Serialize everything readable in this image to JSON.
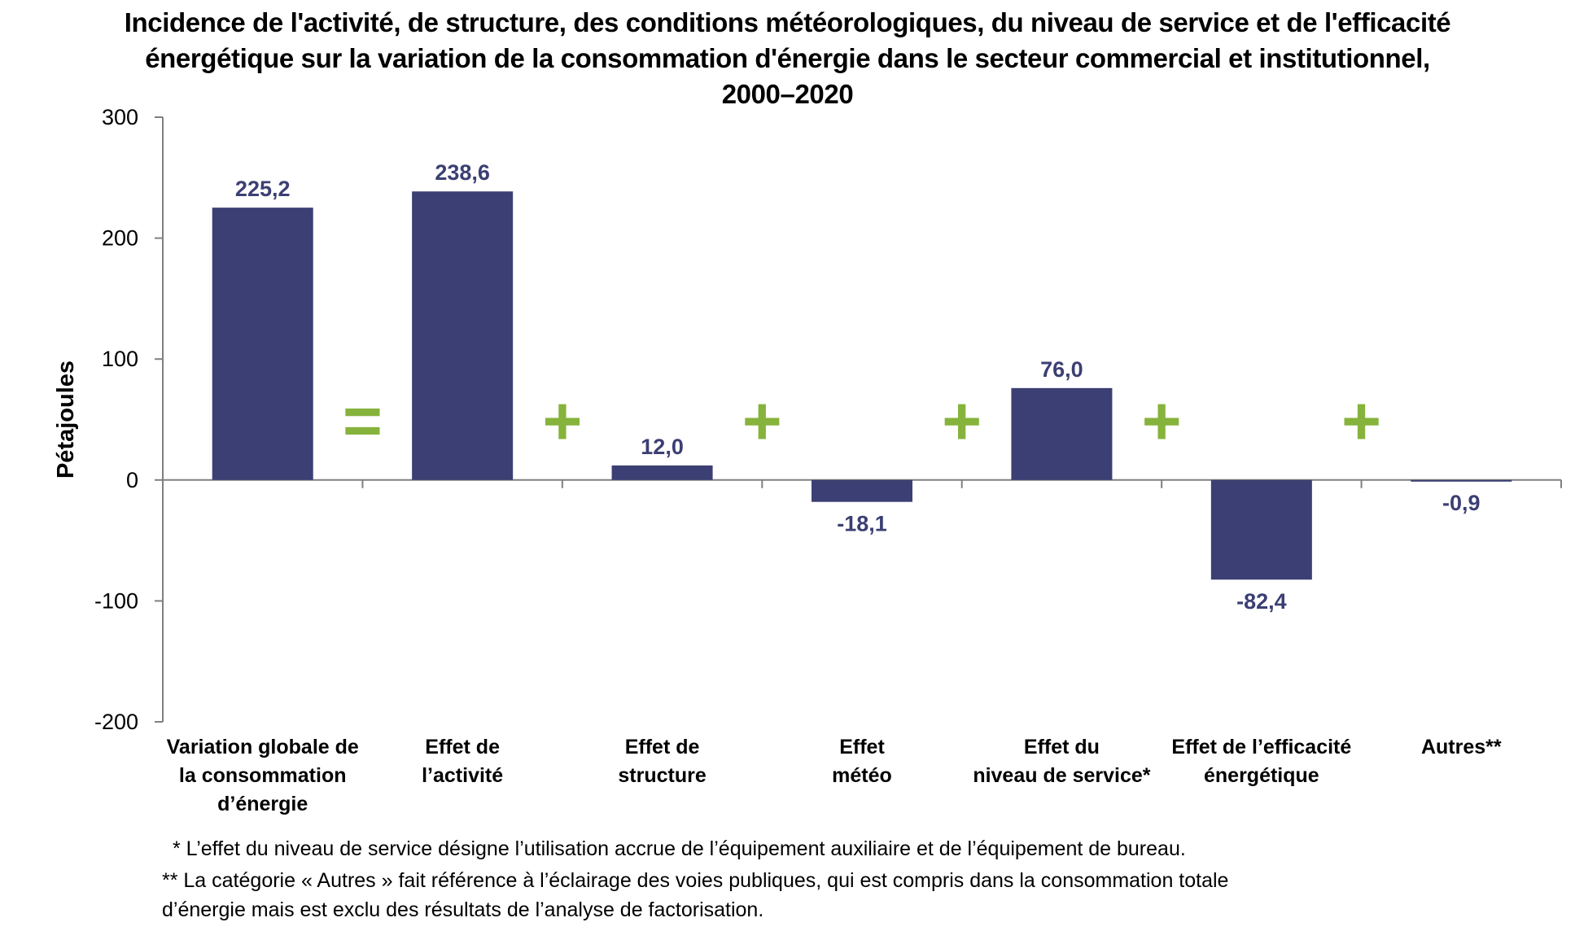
{
  "chart_data": {
    "type": "bar",
    "title": "Incidence de l'activité, de structure, des conditions météorologiques, du niveau de service et de l'efficacité\nénergétique sur la variation de la consommation d'énergie dans le secteur commercial et institutionnel,\n2000–2020",
    "ylabel": "Pétajoules",
    "xlabel": "",
    "ylim": [
      -200,
      300
    ],
    "yticks": [
      300,
      200,
      100,
      0,
      -100,
      -200
    ],
    "categories": [
      [
        "Variation globale de",
        "la consommation",
        "d’énergie"
      ],
      [
        "Effet de",
        "l’activité"
      ],
      [
        "Effet de",
        "structure"
      ],
      [
        "Effet",
        "météo"
      ],
      [
        "Effet du",
        "niveau de service*"
      ],
      [
        "Effet de l’efficacité",
        "énergétique"
      ],
      [
        "Autres**"
      ]
    ],
    "values": [
      225.2,
      238.6,
      12.0,
      -18.1,
      76.0,
      -82.4,
      -0.9
    ],
    "value_labels": [
      "225,2",
      "238,6",
      "12,0",
      "-18,1",
      "76,0",
      "-82,4",
      "-0,9"
    ],
    "operators": [
      "=",
      "+",
      "+",
      "+",
      "+",
      "+"
    ],
    "colors": {
      "bar": "#3b3f73",
      "operator": "#86b33c",
      "axis": "#808080"
    },
    "grid": false,
    "legend": "none"
  },
  "footnotes": [
    "* L’effet du niveau de service désigne l’utilisation accrue de l’équipement auxiliaire et de l’équipement de bureau.",
    "** La catégorie « Autres » fait référence à l’éclairage des voies publiques, qui est compris dans la consommation totale\nd’énergie mais est exclu des résultats de l’analyse de factorisation."
  ]
}
